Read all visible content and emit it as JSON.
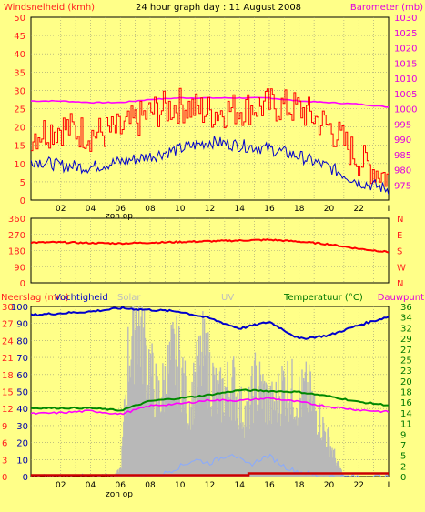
{
  "chart_data": [
    {
      "type": "line",
      "title": "24 hour graph day : 11 August 2008",
      "left_label": "Windsnelheid (kmh)",
      "right_label": "Barometer (mb)",
      "left_ylim": [
        0,
        50
      ],
      "right_ylim": [
        970,
        1030
      ],
      "left_ticks": [
        "0",
        "5",
        "10",
        "15",
        "20",
        "25",
        "30",
        "35",
        "40",
        "45",
        "50"
      ],
      "right_ticks": [
        "975",
        "980",
        "985",
        "990",
        "995",
        "1000",
        "1005",
        "1010",
        "1015",
        "1020",
        "1025",
        "1030"
      ],
      "x_ticks": [
        "02",
        "04",
        "06",
        "08",
        "10",
        "12",
        "14",
        "16",
        "18",
        "20",
        "22",
        "I"
      ],
      "x_sublabel": "zon op",
      "grid": true,
      "colors": {
        "gust": "#ff0000",
        "wind": "#0000cc",
        "pressure": "#ff00ff"
      },
      "x_hours": [
        0,
        2,
        4,
        6,
        8,
        10,
        12,
        14,
        16,
        18,
        20,
        22,
        24
      ],
      "gust": [
        18,
        20,
        18,
        19,
        24,
        26,
        24,
        25,
        26,
        25,
        20,
        11,
        6
      ],
      "wind": [
        11,
        9.5,
        9,
        10.5,
        12,
        14,
        16,
        15,
        14,
        12,
        9,
        5,
        3
      ],
      "pressure": [
        1002.5,
        1002.5,
        1002,
        1002,
        1003,
        1003.5,
        1003.5,
        1003.5,
        1003.5,
        1002.5,
        1002,
        1001.5,
        1000.5
      ]
    },
    {
      "type": "line",
      "left_ticks": [
        "0",
        "90",
        "180",
        "270",
        "360"
      ],
      "left_ylim": [
        0,
        360
      ],
      "right_ticks": [
        "N",
        "W",
        "S",
        "E",
        "N"
      ],
      "grid": true,
      "colors": {
        "direction": "#ff0000"
      },
      "x_hours": [
        0,
        2,
        4,
        6,
        8,
        10,
        12,
        14,
        16,
        18,
        20,
        22,
        24
      ],
      "direction": [
        225,
        226,
        222,
        220,
        224,
        228,
        232,
        236,
        240,
        230,
        215,
        190,
        172
      ]
    },
    {
      "type": "area",
      "left_label": "Neerslag (mm)",
      "left_label2": "Vochtigheid",
      "solar_label": "Solar",
      "uv_label": "UV",
      "right_label": "Temperatuur (°C)",
      "right_label2": "Dauwpunt",
      "left_ticks": [
        "0",
        "10",
        "20",
        "30",
        "40",
        "50",
        "60",
        "70",
        "80",
        "90",
        "100"
      ],
      "left_ticks_rain": [
        "0",
        "3",
        "6",
        "9",
        "12",
        "15",
        "18",
        "21",
        "24",
        "27",
        "30"
      ],
      "right_ticks": [
        "0",
        "2",
        "5",
        "7",
        "9",
        "11",
        "14",
        "16",
        "18",
        "20",
        "23",
        "25",
        "27",
        "29",
        "32",
        "34",
        "36"
      ],
      "x_ticks": [
        "02",
        "04",
        "06",
        "08",
        "10",
        "12",
        "14",
        "16",
        "18",
        "20",
        "22",
        "I"
      ],
      "x_sublabel": "zon op",
      "grid": true,
      "colors": {
        "humidity": "#0000cc",
        "temperature": "#008800",
        "dewpoint": "#ff00ff",
        "rain": "#cc0000",
        "solar": "#b8b8b8",
        "uv": "#88aaff"
      },
      "x_hours": [
        0,
        2,
        4,
        6,
        8,
        10,
        12,
        14,
        16,
        18,
        20,
        22,
        24
      ],
      "humidity": [
        95,
        96,
        97,
        99,
        98,
        97,
        93,
        87,
        91,
        81,
        83,
        89,
        94
      ],
      "temperature": [
        14.5,
        14.5,
        14.5,
        14,
        16,
        16.6,
        17.3,
        18.3,
        18.1,
        17.9,
        17,
        15.8,
        15.1
      ],
      "dewpoint": [
        13.3,
        13.5,
        13.9,
        13.2,
        15,
        15.4,
        16.2,
        16.1,
        16.6,
        15.8,
        14.8,
        14.1,
        13.7
      ],
      "solar_hours": [
        5.5,
        6,
        6.5,
        7,
        7.5,
        8,
        8.5,
        9,
        9.5,
        10,
        10.5,
        11,
        11.5,
        12,
        12.5,
        13,
        13.5,
        14,
        14.5,
        15,
        15.5,
        16,
        16.5,
        17,
        17.5,
        18,
        18.5,
        19,
        19.5,
        20,
        20.5,
        21
      ],
      "solar": [
        0,
        5,
        70,
        95,
        80,
        60,
        45,
        55,
        70,
        65,
        40,
        55,
        70,
        60,
        45,
        50,
        55,
        40,
        35,
        55,
        50,
        40,
        45,
        55,
        50,
        45,
        50,
        40,
        30,
        20,
        8,
        0
      ],
      "uv": [
        0,
        0,
        0,
        0,
        0,
        0,
        0,
        2,
        4,
        6,
        8,
        10,
        9,
        8,
        10,
        12,
        14,
        10,
        7,
        8,
        11,
        12,
        9,
        6,
        4,
        3,
        2,
        1,
        0,
        0,
        0,
        0
      ],
      "rain_value": 0.4
    }
  ]
}
